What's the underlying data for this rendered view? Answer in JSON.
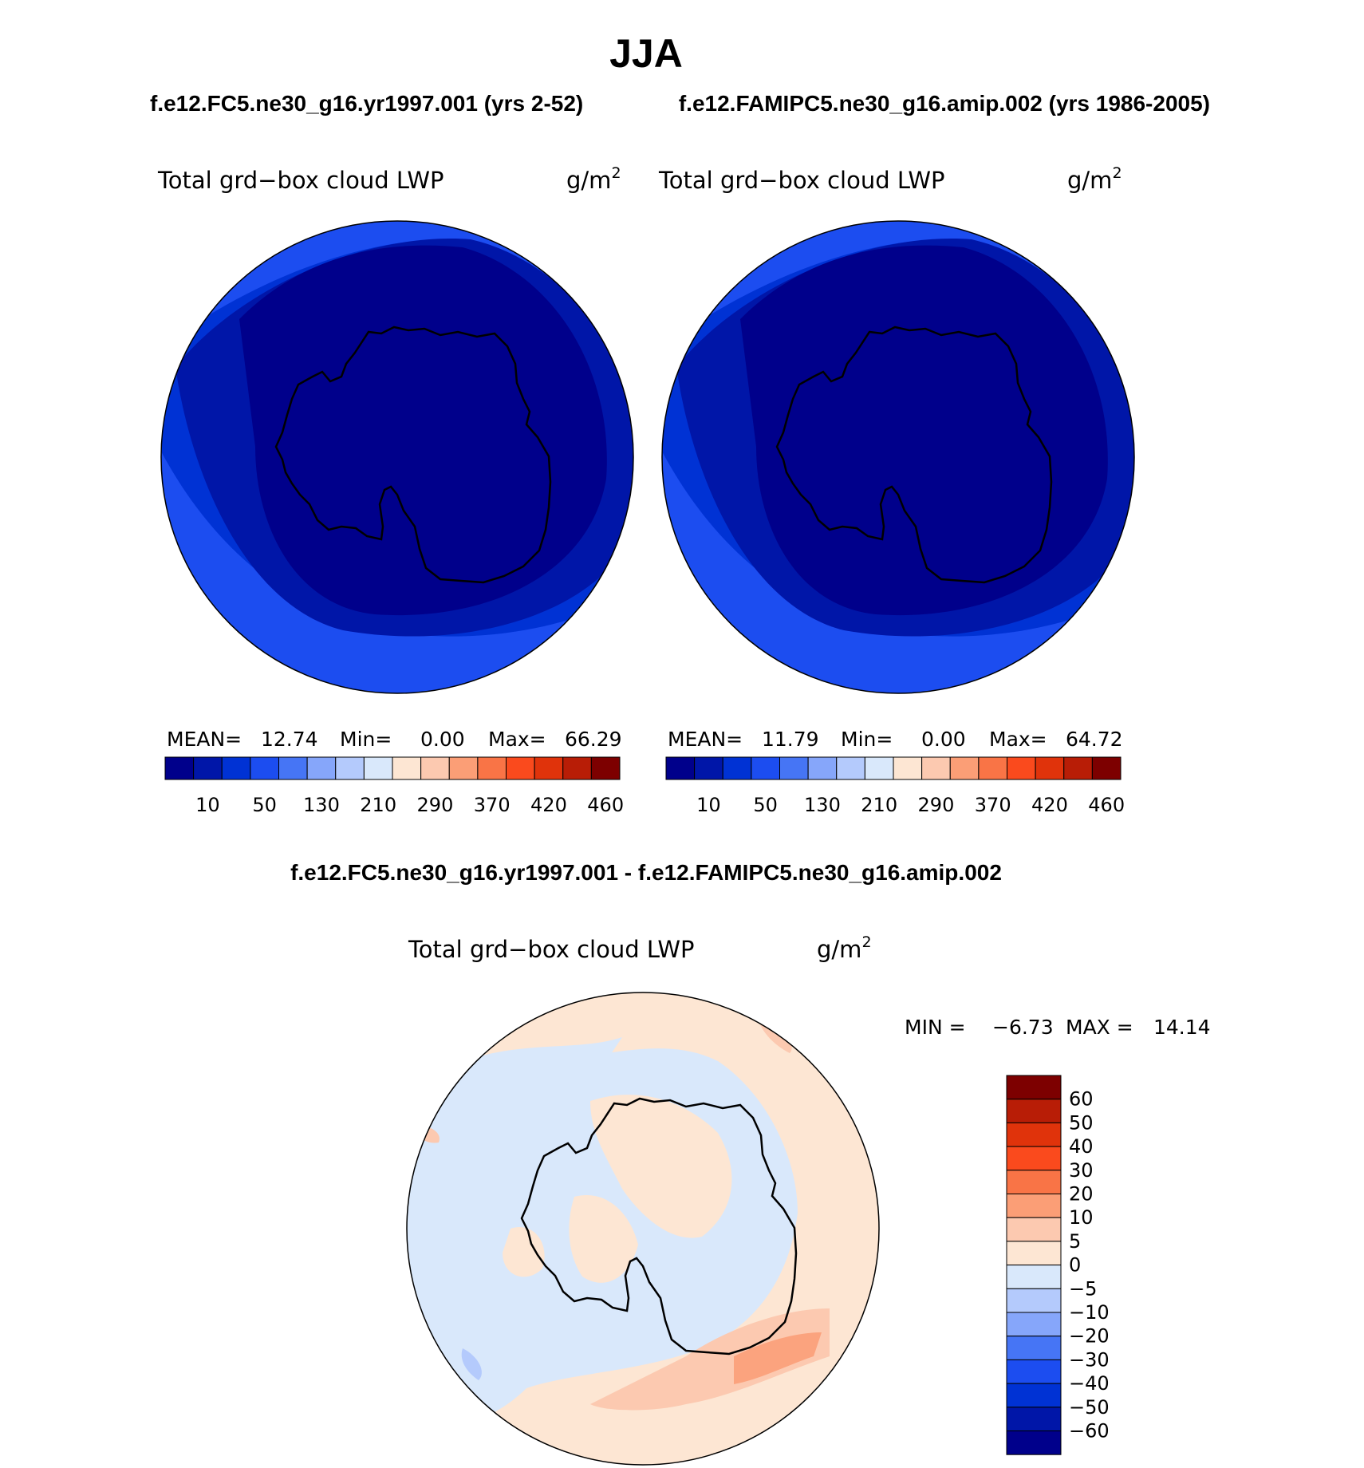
{
  "season": "JJA",
  "panels": [
    {
      "case_title": "f.e12.FC5.ne30_g16.yr1997.001 (yrs 2-52)",
      "variable": "Total grd−box cloud LWP",
      "units": "g/m",
      "units_exp": "2",
      "stats": {
        "mean_label": "MEAN=",
        "mean": "12.74",
        "min_label": "Min=",
        "min": "0.00",
        "max_label": "Max=",
        "max": "66.29"
      }
    },
    {
      "case_title": "f.e12.FAMIPC5.ne30_g16.amip.002 (yrs 1986-2005)",
      "variable": "Total grd−box cloud LWP",
      "units": "g/m",
      "units_exp": "2",
      "stats": {
        "mean_label": "MEAN=",
        "mean": "11.79",
        "min_label": "Min=",
        "min": "0.00",
        "max_label": "Max=",
        "max": "64.72"
      }
    }
  ],
  "diff_panel": {
    "title": "f.e12.FC5.ne30_g16.yr1997.001 - f.e12.FAMIPC5.ne30_g16.amip.002",
    "variable": "Total grd−box cloud LWP",
    "units": "g/m",
    "units_exp": "2",
    "min_label": "MIN =",
    "min": "−6.73",
    "max_label": "MAX =",
    "max": "14.14"
  },
  "colors": {
    "abs_scale": [
      "#00008b",
      "#0016a8",
      "#0032d4",
      "#1c4df0",
      "#4675f5",
      "#86a6fa",
      "#b4cafc",
      "#d9e8fb",
      "#fde6d3",
      "#fcc9b0",
      "#fb9e76",
      "#f97446",
      "#fa4a1d",
      "#e0330b",
      "#b81d06",
      "#7d0000"
    ],
    "diff_scale": [
      "#00008b",
      "#0016a8",
      "#0032d4",
      "#1c4df0",
      "#4675f5",
      "#86a6fa",
      "#b4cafc",
      "#d9e8fb",
      "#fde6d3",
      "#fcc9b0",
      "#fb9e76",
      "#f97446",
      "#fa4a1d",
      "#e0330b",
      "#b81d06",
      "#7d0000"
    ],
    "ocean_deep": "#00008b",
    "ring_1": "#0016a8",
    "ring_2": "#0032d4",
    "ring_3": "#1c4df0",
    "diff_pos": "#fde6d3",
    "diff_neg": "#d9e8fb",
    "diff_pos2": "#fcc9b0",
    "diff_pos3": "#fba37e",
    "diff_neg2": "#b4cafc"
  },
  "chart_data": [
    {
      "type": "heatmap",
      "title": "f.e12.FC5.ne30_g16.yr1997.001 (yrs 2-52)",
      "variable": "Total grd−box cloud LWP",
      "units": "g/m2",
      "projection": "south polar stereographic",
      "mean": 12.74,
      "min": 0.0,
      "max": 66.29,
      "colorbar_labels": [
        "10",
        "50",
        "130",
        "210",
        "290",
        "370",
        "420",
        "460"
      ],
      "colorbar_orientation": "horizontal"
    },
    {
      "type": "heatmap",
      "title": "f.e12.FAMIPC5.ne30_g16.amip.002 (yrs 1986-2005)",
      "variable": "Total grd−box cloud LWP",
      "units": "g/m2",
      "projection": "south polar stereographic",
      "mean": 11.79,
      "min": 0.0,
      "max": 64.72,
      "colorbar_labels": [
        "10",
        "50",
        "130",
        "210",
        "290",
        "370",
        "420",
        "460"
      ],
      "colorbar_orientation": "horizontal"
    },
    {
      "type": "heatmap",
      "title": "f.e12.FC5.ne30_g16.yr1997.001 - f.e12.FAMIPC5.ne30_g16.amip.002",
      "variable": "Total grd−box cloud LWP",
      "units": "g/m2",
      "projection": "south polar stereographic",
      "min": -6.73,
      "max": 14.14,
      "colorbar_labels": [
        "60",
        "50",
        "40",
        "30",
        "20",
        "10",
        "5",
        "0",
        "−5",
        "−10",
        "−20",
        "−30",
        "−40",
        "−50",
        "−60"
      ],
      "colorbar_orientation": "vertical"
    }
  ]
}
